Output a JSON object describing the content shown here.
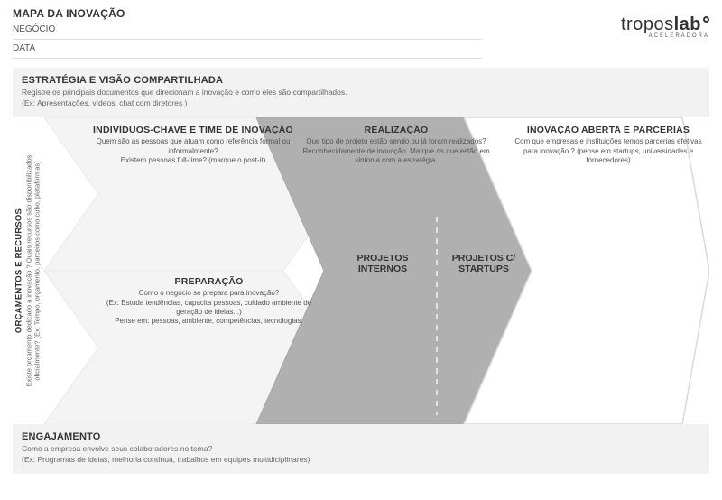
{
  "header": {
    "title": "MAPA DA INOVAÇÃO",
    "line1": "NEGÓCIO",
    "line2": "DATA",
    "logo": {
      "text_light": "tropos",
      "text_bold": "lab",
      "sub": "ACELERADORA"
    }
  },
  "strategy": {
    "title": "ESTRATÉGIA E VISÃO COMPARTILHADA",
    "desc": "Registre os principais documentos que direcionam a inovação e como eles são compartilhados.\n(Ex: Apresentações, vídeos, chat com diretores )"
  },
  "sidebar": {
    "title": "ORÇAMENTOS E RECURSOS",
    "desc": "Existe orçamento dedicado a inovação ? Quais recursos são disponibilizados oficialmente? (Ex: Tempo, orçamento, parceiros como cubo, plataformas)"
  },
  "arrows": {
    "a1": {
      "title": "INDIVÍDUOS-CHAVE E TIME DE INOVAÇÃO",
      "desc": "Quem são as pessoas que atuam como referência formal ou informalmente?\nExistem pessoas full-time? (marque o post-it)"
    },
    "a2": {
      "title": "PREPARAÇÃO",
      "desc": "Como o negócio se prepara para inovação?\n(Ex: Estuda tendências, capacita pessoas, cuidado ambiente de geração de ideias...)\nPense em: pessoas, ambiente, competências, tecnologias."
    },
    "a3": {
      "title": "REALIZAÇÃO",
      "desc": "Que tipo de projeto estão sendo ou já foram realizados? Reconhecidamente de inovação. Marque os que estão em sintonia com a estratégia.",
      "sub_left": "PROJETOS INTERNOS",
      "sub_right": "PROJETOS C/ STARTUPS"
    },
    "a4": {
      "title": "INOVAÇÃO ABERTA E PARCERIAS",
      "desc": "Com que empresas e instituições temos parcerias efetivas para inovação ? (pense em startups, universidades e fornecedores)"
    }
  },
  "engagement": {
    "title": "ENGAJAMENTO",
    "desc": "Como a empresa envolve seus colaboradores no tema?\n(Ex: Programas de ideias, melhoria contínua, trabalhos em equipes multidiciplinares)"
  },
  "colors": {
    "band_bg": "#f2f2f2",
    "arrow_light": "#f4f4f4",
    "arrow_mid": "#b0b0b0",
    "arrow_stroke": "#cfcfcf",
    "dash": "#d5d5d5"
  }
}
